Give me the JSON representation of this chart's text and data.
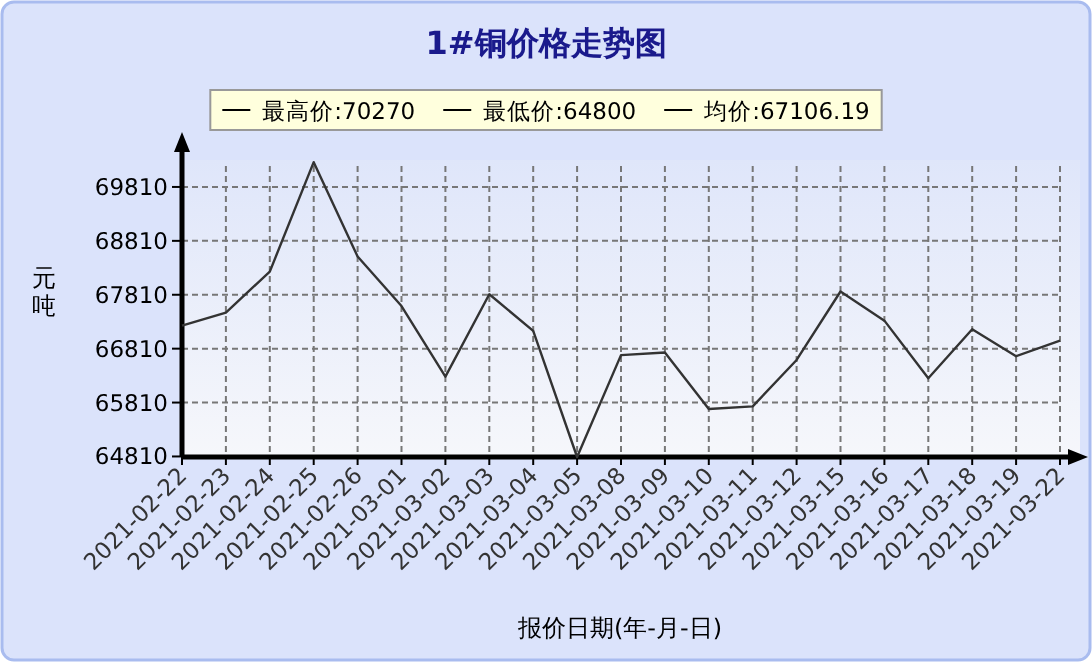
{
  "chart_data": {
    "type": "line",
    "title": "1#铜价格走势图",
    "annotations": [
      "最高价:70270",
      "最低价:64800",
      "均价:67106.19"
    ],
    "xlabel": "报价日期(年-月-日)",
    "ylabel": "元吨",
    "categories": [
      "2021-02-22",
      "2021-02-23",
      "2021-02-24",
      "2021-02-25",
      "2021-02-26",
      "2021-03-01",
      "2021-03-02",
      "2021-03-03",
      "2021-03-04",
      "2021-03-05",
      "2021-03-08",
      "2021-03-09",
      "2021-03-10",
      "2021-03-11",
      "2021-03-12",
      "2021-03-15",
      "2021-03-16",
      "2021-03-17",
      "2021-03-18",
      "2021-03-19",
      "2021-03-22"
    ],
    "series": [
      {
        "color": "#333333",
        "values": [
          67236,
          67480,
          68240,
          70270,
          68520,
          67600,
          66290,
          67820,
          67140,
          64800,
          66690,
          66740,
          65690,
          65740,
          66600,
          67870,
          67330,
          66260,
          67170,
          66670,
          66960
        ]
      }
    ],
    "ylim": [
      64800,
      70310
    ],
    "yticks": [
      64810,
      65810,
      66810,
      67810,
      68810,
      69810
    ],
    "grid": true
  }
}
